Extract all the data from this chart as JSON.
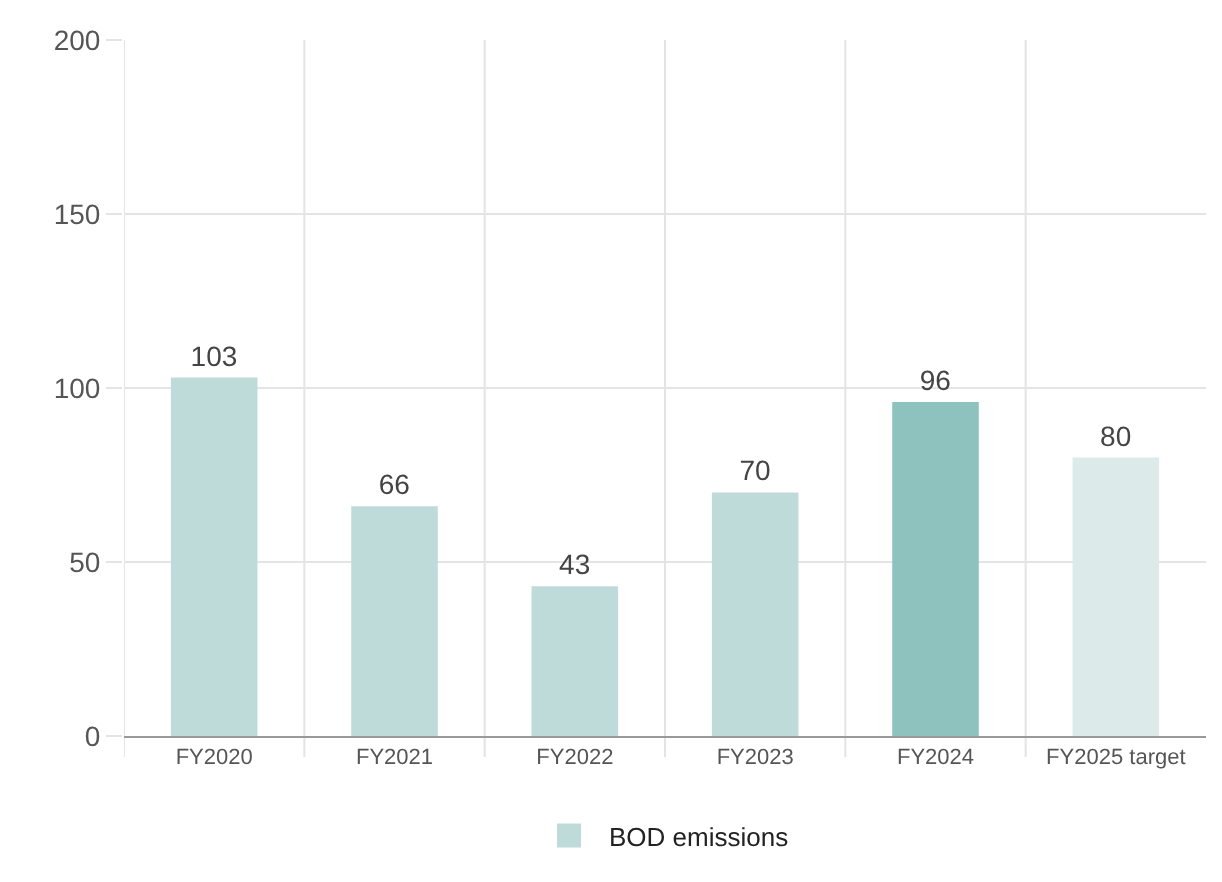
{
  "chart_data": {
    "type": "bar",
    "categories": [
      "FY2020",
      "FY2021",
      "FY2022",
      "FY2023",
      "FY2024",
      "FY2025 target"
    ],
    "series": [
      {
        "name": "BOD emissions",
        "color": "#bedad9",
        "colors": [
          "#bedad9",
          "#bedad9",
          "#bedad9",
          "#bedad9",
          "#8ec2bf",
          "#dcebea"
        ],
        "values": [
          103,
          66,
          43,
          70,
          96,
          80
        ]
      }
    ],
    "ylim": [
      0,
      200
    ],
    "yticks": [
      0,
      50,
      100,
      150,
      200
    ],
    "grid": true,
    "legend": "bottom",
    "data_labels": true
  }
}
